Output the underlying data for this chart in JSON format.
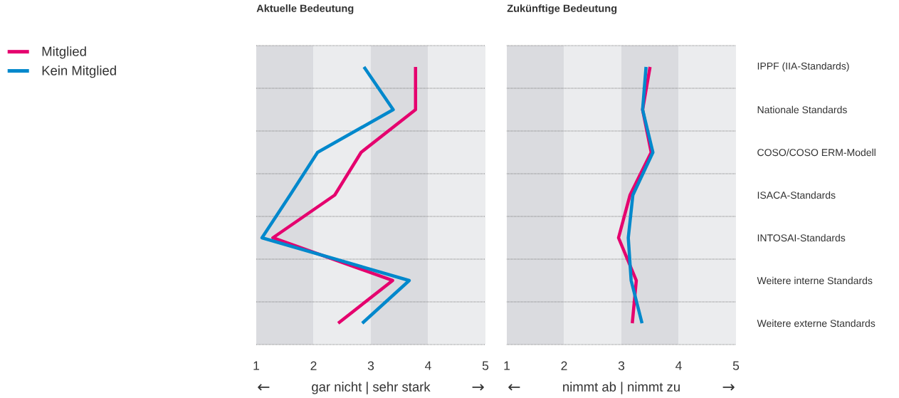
{
  "chart_data": [
    {
      "type": "line",
      "title": "Aktuelle Bedeutung",
      "xlabel": "gar nicht | sehr stark",
      "orientation": "horizontal",
      "categories": [
        null,
        null,
        null,
        null,
        null,
        null,
        null
      ],
      "series": [
        {
          "name": "Mitglied",
          "color": "#e5006e",
          "values": [
            3.78,
            3.78,
            2.83,
            2.37,
            1.29,
            3.38,
            2.43
          ]
        },
        {
          "name": "Kein Mitglied",
          "color": "#0088cc",
          "values": [
            2.88,
            3.39,
            2.07,
            1.59,
            1.1,
            3.67,
            2.85
          ]
        }
      ],
      "xlim": [
        1,
        5
      ],
      "xticks": [
        1,
        2,
        3,
        4,
        5
      ],
      "grid": "y",
      "legend": "left",
      "bands": [
        {
          "axis": "x",
          "from": 1,
          "to": 2,
          "color": "#dadbdf"
        },
        {
          "axis": "x",
          "from": 2,
          "to": 3,
          "color": "#ebecee"
        },
        {
          "axis": "x",
          "from": 3,
          "to": 4,
          "color": "#dadbdf"
        },
        {
          "axis": "x",
          "from": 4,
          "to": 5,
          "color": "#ebecee"
        }
      ],
      "annotations": [
        "←",
        "→"
      ]
    },
    {
      "type": "line",
      "title": "Zukünftige Bedeutung",
      "xlabel": "nimmt ab | nimmt zu",
      "orientation": "horizontal",
      "categories": [
        "IPPF (IIA-Standards)",
        "Nationale Standards",
        "COSO/COSO ERM-Modell",
        "ISACA-Standards",
        "INTOSAI-Standards",
        "Weitere interne Standards",
        "Weitere externe Standards"
      ],
      "series": [
        {
          "color": "#e5006e",
          "values": [
            3.5,
            3.37,
            3.52,
            3.15,
            2.95,
            3.26,
            3.19
          ]
        },
        {
          "color": "#0088cc",
          "values": [
            3.43,
            3.37,
            3.55,
            3.2,
            3.12,
            3.17,
            3.36
          ]
        }
      ],
      "xlim": [
        1,
        5
      ],
      "xticks": [
        1,
        2,
        3,
        4,
        5
      ],
      "grid": "y",
      "bands": [
        {
          "axis": "x",
          "from": 1,
          "to": 2,
          "color": "#dadbdf"
        },
        {
          "axis": "x",
          "from": 2,
          "to": 3,
          "color": "#ebecee"
        },
        {
          "axis": "x",
          "from": 3,
          "to": 4,
          "color": "#dadbdf"
        },
        {
          "axis": "x",
          "from": 4,
          "to": 5,
          "color": "#ebecee"
        }
      ],
      "annotations": [
        "←",
        "→"
      ]
    }
  ]
}
